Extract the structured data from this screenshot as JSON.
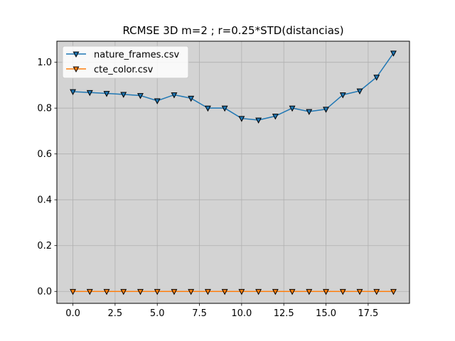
{
  "chart_data": {
    "type": "line",
    "title": "RCMSE 3D m=2 ; r=0.25*STD(distancias)",
    "xlabel": "",
    "ylabel": "",
    "xlim": [
      -0.95,
      19.95
    ],
    "ylim": [
      -0.052,
      1.092
    ],
    "x_ticks": [
      0.0,
      2.5,
      5.0,
      7.5,
      10.0,
      12.5,
      15.0,
      17.5
    ],
    "x_tick_labels": [
      "0.0",
      "2.5",
      "5.0",
      "7.5",
      "10.0",
      "12.5",
      "15.0",
      "17.5"
    ],
    "y_ticks": [
      0.0,
      0.2,
      0.4,
      0.6,
      0.8,
      1.0
    ],
    "y_tick_labels": [
      "0.0",
      "0.2",
      "0.4",
      "0.6",
      "0.8",
      "1.0"
    ],
    "grid": true,
    "plot_background": "#d3d3d3",
    "legend_position": "top-left",
    "marker": "triangle-down",
    "x": [
      0,
      1,
      2,
      3,
      4,
      5,
      6,
      7,
      8,
      9,
      10,
      11,
      12,
      13,
      14,
      15,
      16,
      17,
      18,
      19
    ],
    "series": [
      {
        "name": "nature_frames.csv",
        "color": "#1f77b4",
        "values": [
          0.872,
          0.868,
          0.864,
          0.86,
          0.855,
          0.832,
          0.858,
          0.843,
          0.8,
          0.8,
          0.755,
          0.748,
          0.765,
          0.8,
          0.785,
          0.795,
          0.858,
          0.875,
          0.935,
          1.04
        ]
      },
      {
        "name": "cte_color.csv",
        "color": "#ff7f0e",
        "values": [
          0,
          0,
          0,
          0,
          0,
          0,
          0,
          0,
          0,
          0,
          0,
          0,
          0,
          0,
          0,
          0,
          0,
          0,
          0,
          0
        ]
      }
    ]
  }
}
